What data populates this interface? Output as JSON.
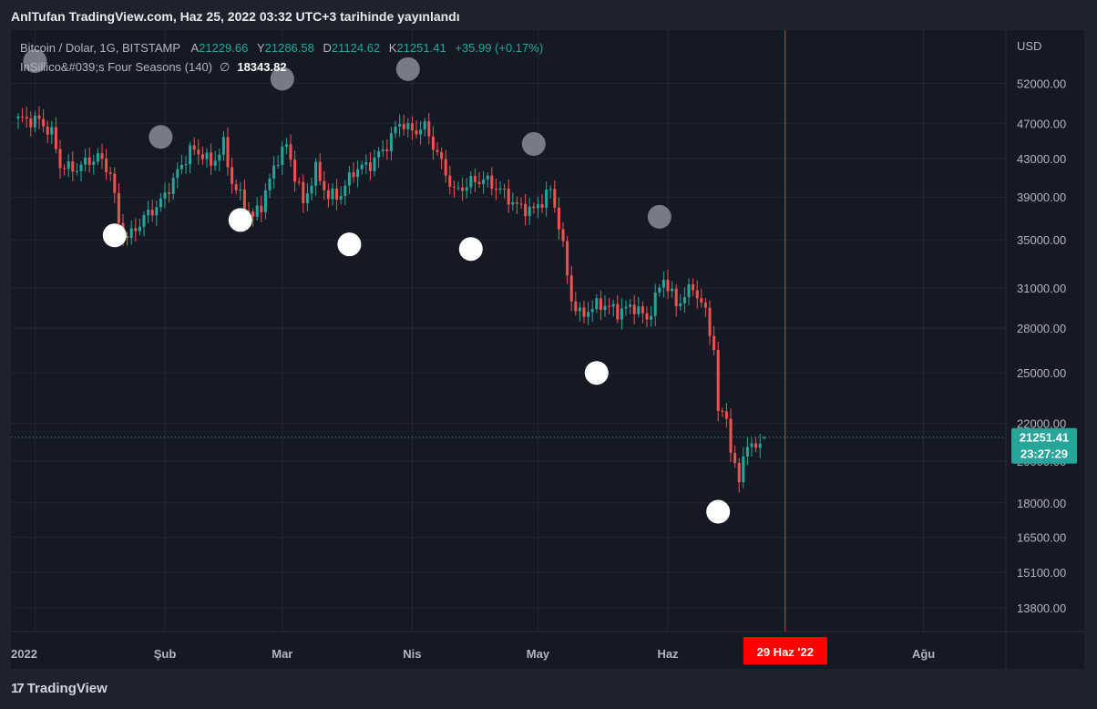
{
  "header": {
    "published": "AnlTufan TradingView.com, Haz 25, 2022 03:32 UTC+3 tarihinde yayınlandı"
  },
  "legend": {
    "symbol": "Bitcoin / Dolar, 1G, BITSTAMP",
    "open_label": "A",
    "open": "21229.66",
    "high_label": "Y",
    "high": "21286.58",
    "low_label": "D",
    "low": "21124.62",
    "close_label": "K",
    "close": "21251.41",
    "change": "+35.99 (+0.17%)",
    "indicator_name": "InSillico&#039;s Four Seasons (140)",
    "indicator_symbol": "∅",
    "indicator_value": "18343.82"
  },
  "price_axis": {
    "currency": "USD"
  },
  "last_price": {
    "value": "21251.41",
    "countdown": "23:27:29"
  },
  "cursor": {
    "date_label": "29 Haz '22"
  },
  "footer": {
    "logo_mark": "17",
    "logo_text": "TradingView"
  },
  "colors": {
    "bull": "#26a69a",
    "bear": "#ef5350",
    "white_marker": "#ffffff",
    "gray_marker": "#787b86",
    "cursor_line": "#f23645",
    "cursor_label_bg": "#ff0000",
    "last_price_bg": "#26a69a"
  },
  "chart_data": {
    "type": "candlestick",
    "y_scale": "log",
    "ylim": [
      13000,
      58000
    ],
    "y_ticks": [
      "52000.00",
      "47000.00",
      "43000.00",
      "39000.00",
      "35000.00",
      "31000.00",
      "28000.00",
      "25000.00",
      "22000.00",
      "20000.00",
      "18000.00",
      "16500.00",
      "15100.00",
      "13800.00"
    ],
    "x_ticks": [
      {
        "label": "2022",
        "date": "2022-01-01"
      },
      {
        "label": "Şub",
        "date": "2022-02-01"
      },
      {
        "label": "Mar",
        "date": "2022-03-01"
      },
      {
        "label": "Nis",
        "date": "2022-04-01"
      },
      {
        "label": "May",
        "date": "2022-05-01"
      },
      {
        "label": "Haz",
        "date": "2022-06-01"
      },
      {
        "label": "Ağu",
        "date": "2022-08-01"
      }
    ],
    "start_date": "2021-12-28",
    "cursor_date": "2022-06-29",
    "close_path": [
      [
        "2021-12-28",
        47500
      ],
      [
        "2022-01-02",
        47300
      ],
      [
        "2022-01-05",
        45800
      ],
      [
        "2022-01-07",
        42300
      ],
      [
        "2022-01-10",
        41800
      ],
      [
        "2022-01-13",
        42500
      ],
      [
        "2022-01-16",
        43200
      ],
      [
        "2022-01-19",
        41500
      ],
      [
        "2022-01-21",
        36500
      ],
      [
        "2022-01-23",
        35100
      ],
      [
        "2022-01-27",
        37000
      ],
      [
        "2022-01-31",
        38500
      ],
      [
        "2022-02-04",
        41500
      ],
      [
        "2022-02-07",
        43900
      ],
      [
        "2022-02-10",
        43500
      ],
      [
        "2022-02-12",
        42300
      ],
      [
        "2022-02-15",
        44500
      ],
      [
        "2022-02-17",
        40500
      ],
      [
        "2022-02-20",
        38300
      ],
      [
        "2022-02-22",
        37000
      ],
      [
        "2022-02-24",
        38300
      ],
      [
        "2022-02-28",
        43200
      ],
      [
        "2022-03-02",
        44400
      ],
      [
        "2022-03-06",
        38400
      ],
      [
        "2022-03-09",
        41800
      ],
      [
        "2022-03-12",
        39000
      ],
      [
        "2022-03-15",
        39300
      ],
      [
        "2022-03-18",
        41700
      ],
      [
        "2022-03-22",
        42400
      ],
      [
        "2022-03-26",
        44500
      ],
      [
        "2022-03-29",
        47200
      ],
      [
        "2022-04-01",
        46000
      ],
      [
        "2022-04-04",
        46600
      ],
      [
        "2022-04-07",
        43500
      ],
      [
        "2022-04-11",
        39500
      ],
      [
        "2022-04-15",
        40500
      ],
      [
        "2022-04-18",
        40800
      ],
      [
        "2022-04-22",
        39700
      ],
      [
        "2022-04-26",
        38100
      ],
      [
        "2022-04-30",
        37700
      ],
      [
        "2022-05-04",
        39700
      ],
      [
        "2022-05-06",
        36500
      ],
      [
        "2022-05-09",
        30100
      ],
      [
        "2022-05-11",
        28900
      ],
      [
        "2022-05-13",
        29300
      ],
      [
        "2022-05-16",
        29800
      ],
      [
        "2022-05-20",
        29200
      ],
      [
        "2022-05-24",
        29600
      ],
      [
        "2022-05-27",
        28600
      ],
      [
        "2022-05-31",
        31800
      ],
      [
        "2022-06-03",
        29700
      ],
      [
        "2022-06-07",
        31100
      ],
      [
        "2022-06-10",
        29100
      ],
      [
        "2022-06-12",
        26600
      ],
      [
        "2022-06-13",
        22500
      ],
      [
        "2022-06-15",
        22600
      ],
      [
        "2022-06-16",
        20400
      ],
      [
        "2022-06-18",
        19000
      ],
      [
        "2022-06-19",
        20500
      ],
      [
        "2022-06-21",
        20700
      ],
      [
        "2022-06-24",
        21251.41
      ]
    ],
    "white_markers": [
      {
        "date": "2022-01-20",
        "price": 35400
      },
      {
        "date": "2022-02-19",
        "price": 36800
      },
      {
        "date": "2022-03-17",
        "price": 34600
      },
      {
        "date": "2022-04-15",
        "price": 34200
      },
      {
        "date": "2022-05-15",
        "price": 25000
      },
      {
        "date": "2022-06-13",
        "price": 17600
      }
    ],
    "gray_markers": [
      {
        "date": "2022-01-01",
        "price": 55000
      },
      {
        "date": "2022-01-31",
        "price": 45400
      },
      {
        "date": "2022-03-01",
        "price": 52600
      },
      {
        "date": "2022-03-31",
        "price": 53900
      },
      {
        "date": "2022-04-30",
        "price": 44600
      },
      {
        "date": "2022-05-30",
        "price": 37100
      }
    ]
  }
}
